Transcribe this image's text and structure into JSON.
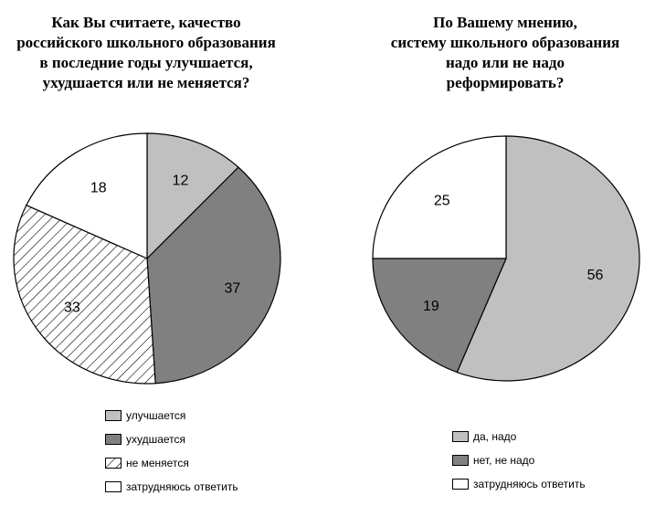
{
  "colors": {
    "light": "#c0c0c0",
    "dark": "#808080",
    "white": "#ffffff",
    "stroke": "#000000"
  },
  "chart_data": [
    {
      "type": "pie",
      "title": "Как Вы считаете, качество\nроссийского школьного образования\nв последние годы  улучшается,\nухудшается  или не меняется?",
      "slices": [
        {
          "label": "улучшается",
          "value": 12,
          "fill": "light"
        },
        {
          "label": "ухудшается",
          "value": 37,
          "fill": "dark"
        },
        {
          "label": "не меняется",
          "value": 33,
          "fill": "hatch"
        },
        {
          "label": "затрудняюсь ответить",
          "value": 18,
          "fill": "white"
        }
      ]
    },
    {
      "type": "pie",
      "title": "По Вашему мнению,\nсистему школьного образования\nнадо или не надо\nреформировать?",
      "slices": [
        {
          "label": "да, надо",
          "value": 56,
          "fill": "light"
        },
        {
          "label": "нет, не надо",
          "value": 19,
          "fill": "dark"
        },
        {
          "label": "затрудняюсь ответить",
          "value": 25,
          "fill": "white"
        }
      ]
    }
  ]
}
